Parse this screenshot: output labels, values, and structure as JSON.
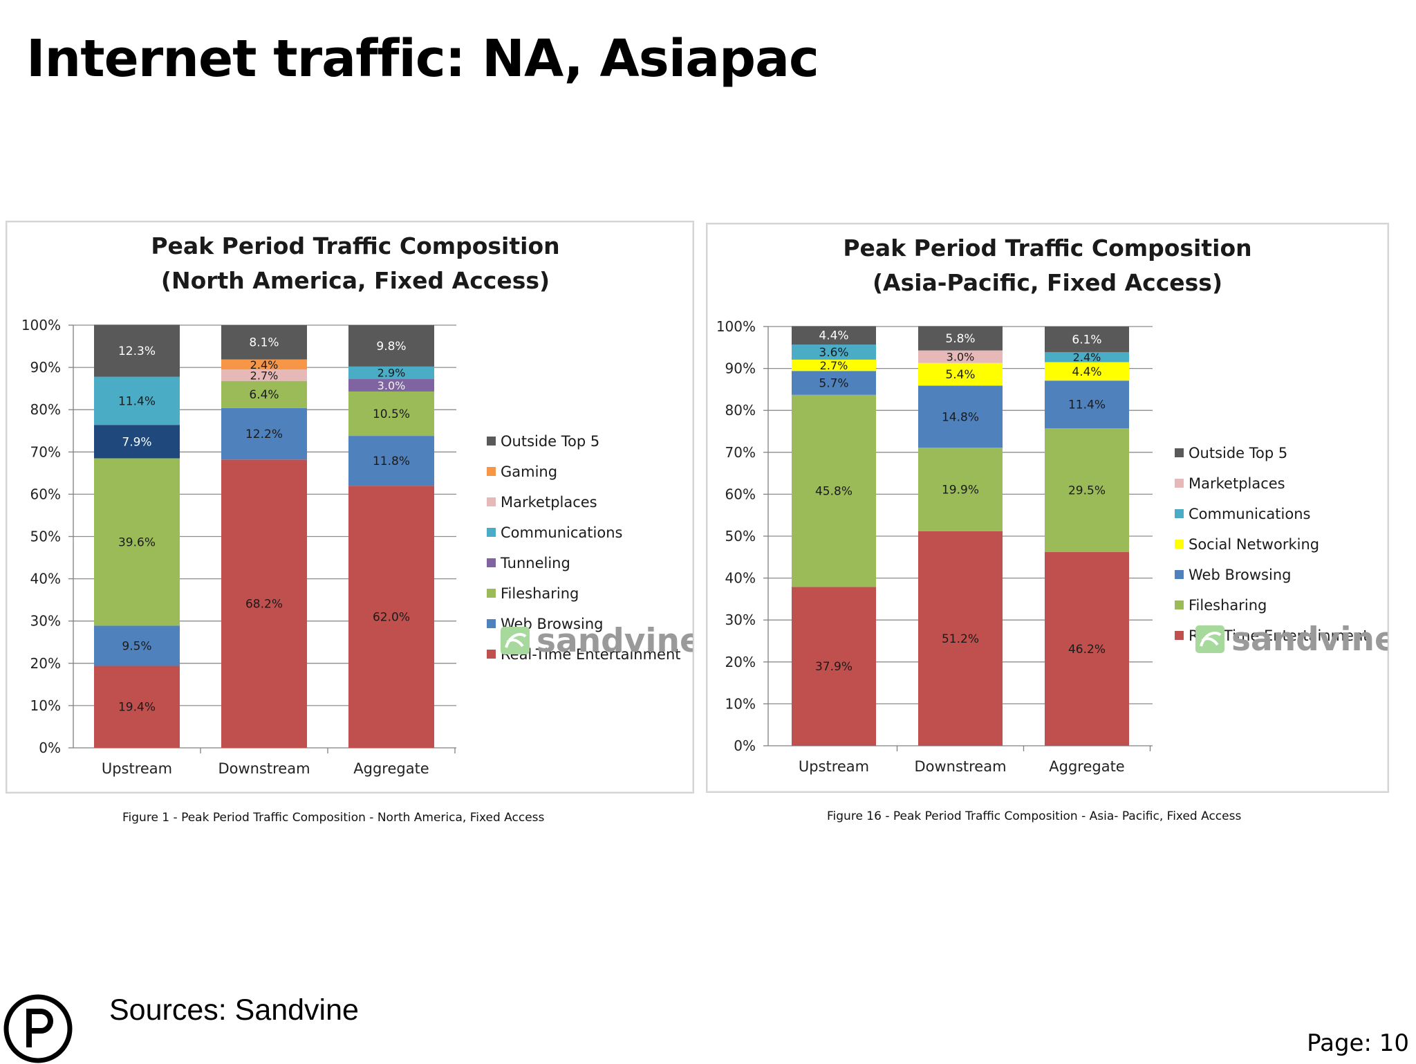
{
  "slide": {
    "title": "Internet traffic: NA, Asiapac",
    "sources": "Sources: Sandvine",
    "page": "Page: 10"
  },
  "captions": {
    "na": "Figure 1 - Peak Period Traffic Composition - North America, Fixed Access",
    "ap": "Figure 16 - Peak Period Traffic Composition - Asia- Pacific, Fixed Access"
  },
  "colors": {
    "Outside Top 5": "#595959",
    "Gaming": "#f79646",
    "Marketplaces": "#e6b9b8",
    "Communications": "#4bacc6",
    "Tunneling": "#8064a2",
    "Social Networking": "#ffff00",
    "Filesharing": "#9bbb59",
    "Web Browsing": "#4f81bd",
    "Real-Time Entertainment": "#c0504d",
    "Dark Blue Segment": "#1f497d"
  },
  "chart_data": [
    {
      "type": "bar",
      "stacked": true,
      "title": "Peak Period Traffic Composition",
      "subtitle": "(North America, Fixed Access)",
      "categories": [
        "Upstream",
        "Downstream",
        "Aggregate"
      ],
      "ylim": [
        0,
        100
      ],
      "yticks": [
        "0%",
        "10%",
        "20%",
        "30%",
        "40%",
        "50%",
        "60%",
        "70%",
        "80%",
        "90%",
        "100%"
      ],
      "legend": [
        "Outside Top 5",
        "Gaming",
        "Marketplaces",
        "Communications",
        "Tunneling",
        "Filesharing",
        "Web Browsing",
        "Real-Time Entertainment"
      ],
      "legend_position": "right",
      "brand": "sandvine",
      "series": [
        {
          "name": "Real-Time Entertainment",
          "values": [
            19.4,
            68.2,
            62.0
          ],
          "labels": [
            "19.4%",
            "68.2%",
            "62.0%"
          ]
        },
        {
          "name": "Web Browsing",
          "values": [
            9.5,
            12.2,
            11.8
          ],
          "labels": [
            "9.5%",
            "12.2%",
            "11.8%"
          ]
        },
        {
          "name": "Filesharing",
          "values": [
            39.6,
            6.4,
            10.5
          ],
          "labels": [
            "39.6%",
            "6.4%",
            "10.5%"
          ]
        },
        {
          "name": "Dark Blue Segment",
          "values": [
            7.9,
            0,
            0
          ],
          "labels": [
            "7.9%",
            "",
            ""
          ]
        },
        {
          "name": "Tunneling",
          "values": [
            0,
            0,
            3.0
          ],
          "labels": [
            "",
            "",
            "3.0%"
          ]
        },
        {
          "name": "Communications",
          "values": [
            11.4,
            0,
            2.9
          ],
          "labels": [
            "11.4%",
            "",
            "2.9%"
          ]
        },
        {
          "name": "Marketplaces",
          "values": [
            0,
            2.7,
            0
          ],
          "labels": [
            "",
            "2.7%",
            ""
          ]
        },
        {
          "name": "Gaming",
          "values": [
            0,
            2.4,
            0
          ],
          "labels": [
            "",
            "2.4%",
            ""
          ]
        },
        {
          "name": "Outside Top 5",
          "values": [
            12.3,
            8.1,
            9.8
          ],
          "labels": [
            "12.3%",
            "8.1%",
            "9.8%"
          ]
        }
      ]
    },
    {
      "type": "bar",
      "stacked": true,
      "title": "Peak Period Traffic Composition",
      "subtitle": "(Asia-Pacific, Fixed Access)",
      "categories": [
        "Upstream",
        "Downstream",
        "Aggregate"
      ],
      "ylim": [
        0,
        100
      ],
      "yticks": [
        "0%",
        "10%",
        "20%",
        "30%",
        "40%",
        "50%",
        "60%",
        "70%",
        "80%",
        "90%",
        "100%"
      ],
      "legend": [
        "Outside Top 5",
        "Marketplaces",
        "Communications",
        "Social Networking",
        "Web Browsing",
        "Filesharing",
        "Real-Time Entertainment"
      ],
      "legend_position": "right",
      "brand": "sandvine",
      "series": [
        {
          "name": "Real-Time Entertainment",
          "values": [
            37.9,
            51.2,
            46.2
          ],
          "labels": [
            "37.9%",
            "51.2%",
            "46.2%"
          ]
        },
        {
          "name": "Filesharing",
          "values": [
            45.8,
            19.9,
            29.5
          ],
          "labels": [
            "45.8%",
            "19.9%",
            "29.5%"
          ]
        },
        {
          "name": "Web Browsing",
          "values": [
            5.7,
            14.8,
            11.4
          ],
          "labels": [
            "5.7%",
            "14.8%",
            "11.4%"
          ]
        },
        {
          "name": "Social Networking",
          "values": [
            2.7,
            5.4,
            4.4
          ],
          "labels": [
            "2.7%",
            "5.4%",
            "4.4%"
          ]
        },
        {
          "name": "Communications",
          "values": [
            3.6,
            0,
            2.4
          ],
          "labels": [
            "3.6%",
            "",
            "2.4%"
          ]
        },
        {
          "name": "Marketplaces",
          "values": [
            0,
            3.0,
            0
          ],
          "labels": [
            "",
            "3.0%",
            ""
          ]
        },
        {
          "name": "Outside Top 5",
          "values": [
            4.4,
            5.8,
            6.1
          ],
          "labels": [
            "4.4%",
            "5.8%",
            "6.1%"
          ]
        }
      ]
    }
  ]
}
